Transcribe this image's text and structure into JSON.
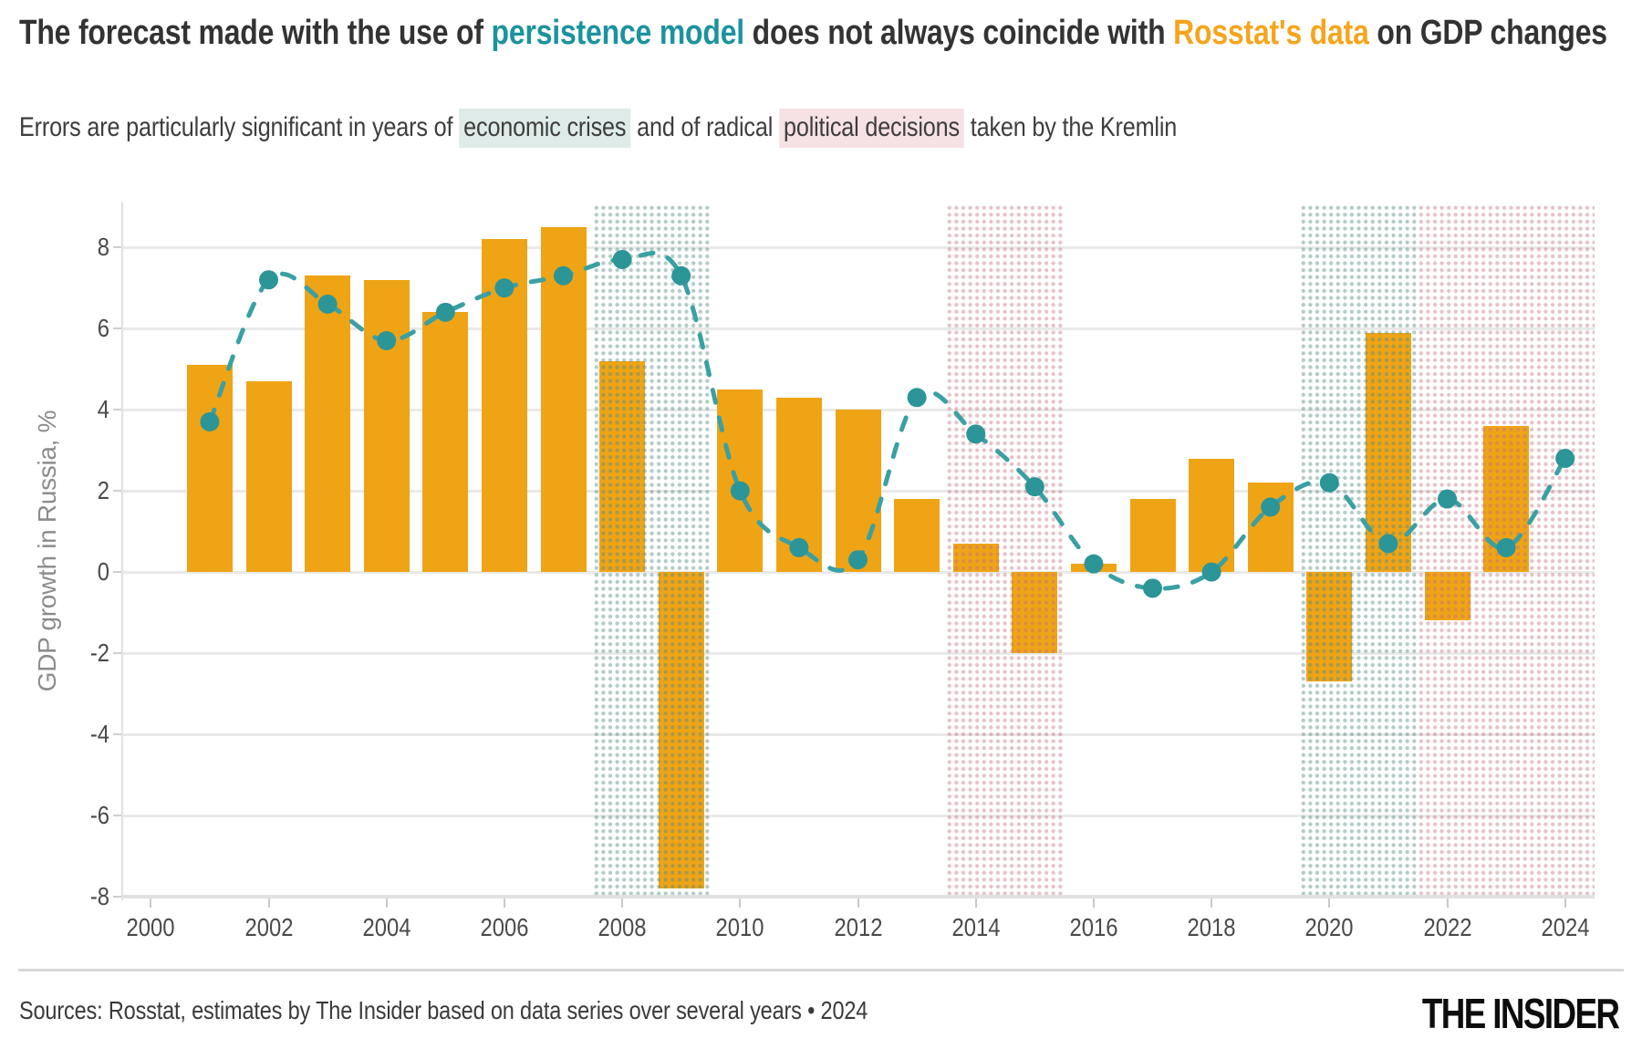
{
  "header": {
    "title_segments": [
      {
        "text": "The forecast made with the use of ",
        "style": "dark"
      },
      {
        "text": "persistence model",
        "style": "teal"
      },
      {
        "text": " does not always coincide with ",
        "style": "dark"
      },
      {
        "text": "Rosstat's data",
        "style": "orange"
      },
      {
        "text": " on GDP changes",
        "style": "dark"
      }
    ],
    "subtitle_segments": [
      {
        "text": "Errors are particularly significant in years of ",
        "style": "plain"
      },
      {
        "text": "economic crises",
        "style": "teal-highlight"
      },
      {
        "text": " and of radical ",
        "style": "plain"
      },
      {
        "text": "political decisions",
        "style": "pink-highlight"
      },
      {
        "text": " taken by the Kremlin",
        "style": "plain"
      }
    ]
  },
  "chart_data": {
    "type": "bar+line",
    "ylabel": "GDP growth in Russia, %",
    "xlim": [
      1999.5,
      2024.5
    ],
    "ylim": [
      -8.0,
      9.06
    ],
    "grid": true,
    "legend": false,
    "xticks": [
      2000,
      2002,
      2004,
      2006,
      2008,
      2010,
      2012,
      2014,
      2016,
      2018,
      2020,
      2022,
      2024
    ],
    "yticks": [
      8,
      6,
      4,
      2,
      0,
      -2,
      -4,
      -6,
      -8
    ],
    "x": [
      2001,
      2002,
      2003,
      2004,
      2005,
      2006,
      2007,
      2008,
      2009,
      2010,
      2011,
      2012,
      2013,
      2014,
      2015,
      2016,
      2017,
      2018,
      2019,
      2020,
      2021,
      2022,
      2023,
      2024
    ],
    "series": [
      {
        "name": "Rosstat's data",
        "type": "bar",
        "color": "#efa415",
        "values": [
          5.1,
          4.7,
          7.3,
          7.2,
          6.4,
          8.2,
          8.5,
          5.2,
          -7.8,
          4.5,
          4.3,
          4.0,
          1.8,
          0.7,
          -2.0,
          0.2,
          1.8,
          2.8,
          2.2,
          -2.7,
          5.9,
          -1.2,
          3.6,
          null
        ]
      },
      {
        "name": "Persistence model forecast",
        "type": "line",
        "color": "#3aa0a3",
        "point_color": "#2c9598",
        "values": [
          3.7,
          7.2,
          6.6,
          5.7,
          6.4,
          7.0,
          7.3,
          7.7,
          7.3,
          2.0,
          0.6,
          0.3,
          4.3,
          3.4,
          2.1,
          0.2,
          -0.4,
          0.0,
          1.6,
          2.2,
          0.7,
          1.8,
          0.6,
          2.8
        ]
      }
    ],
    "regions": [
      {
        "kind": "economic-crisis",
        "label": "economic crisis 2008–2009",
        "from": 2007.5,
        "to": 2009.5
      },
      {
        "kind": "political-decision",
        "label": "political decisions 2014–2015",
        "from": 2013.5,
        "to": 2015.5
      },
      {
        "kind": "economic-crisis",
        "label": "economic crisis 2020–2021",
        "from": 2019.5,
        "to": 2021.5
      },
      {
        "kind": "political-decision",
        "label": "political decisions 2022–2024",
        "from": 2021.5,
        "to": 2024.5
      }
    ]
  },
  "footer": {
    "source": "Sources: Rosstat, estimates by The Insider based on data series over several years • 2024",
    "brand": "THE INSIDER"
  }
}
